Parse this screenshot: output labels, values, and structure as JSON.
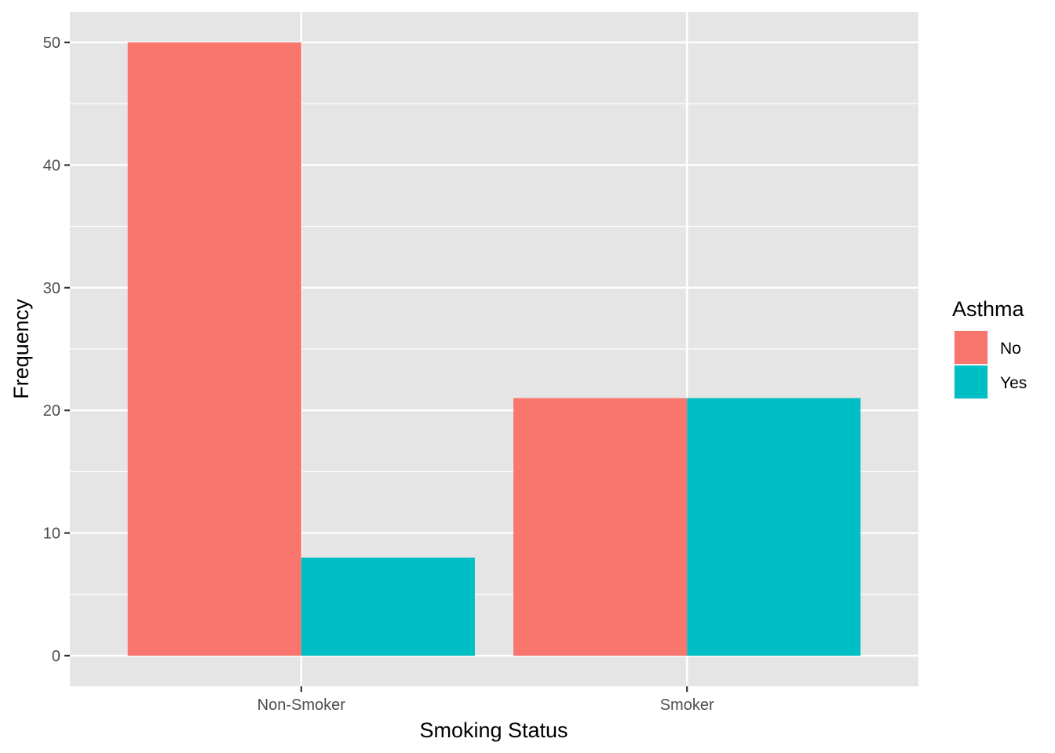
{
  "chart_data": {
    "type": "bar",
    "categories": [
      "Non-Smoker",
      "Smoker"
    ],
    "series": [
      {
        "name": "No",
        "values": [
          50,
          21
        ],
        "color": "#F8766D"
      },
      {
        "name": "Yes",
        "values": [
          8,
          21
        ],
        "color": "#00BFC4"
      }
    ],
    "xlabel": "Smoking Status",
    "ylabel": "Frequency",
    "ylim": [
      -2.5,
      52.5
    ],
    "y_ticks": [
      0,
      10,
      20,
      30,
      40,
      50
    ],
    "y_tick_labels": [
      "0",
      "10",
      "20",
      "30",
      "40",
      "50"
    ],
    "legend": {
      "title": "Asthma",
      "placement": "right",
      "entries": [
        "No",
        "Yes"
      ]
    },
    "grid": true,
    "panel_background": "#E5E5E5"
  }
}
